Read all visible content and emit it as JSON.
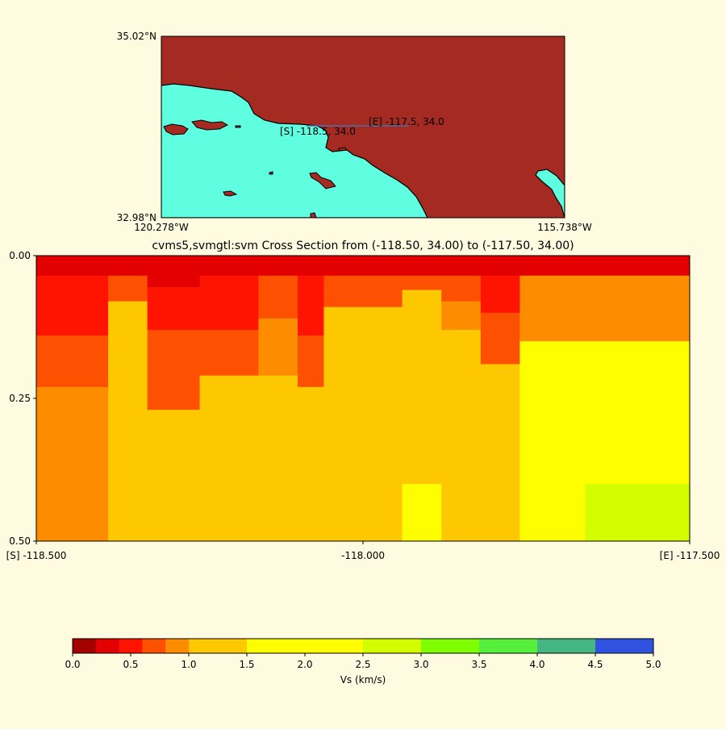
{
  "colors": {
    "background": "#fefbe0",
    "land": "#a52a22",
    "ocean": "#5ffee0",
    "section_line": "#4a6fa5"
  },
  "map": {
    "lat_top": "35.02°N",
    "lat_bottom": "32.98°N",
    "lon_left": "120.278°W",
    "lon_right": "115.738°W",
    "start_label": "[S] -118.5, 34.0",
    "end_label": "[E] -117.5, 34.0"
  },
  "chart_data": {
    "type": "heatmap",
    "title": "cvms5,svmgtl:svm Cross Section from (-118.50, 34.00) to (-117.50, 34.00)",
    "x_ticks": [
      "[S] -118.500",
      "-118.000",
      "[E] -117.500"
    ],
    "x_tick_values": [
      -118.5,
      -118.0,
      -117.5
    ],
    "y_ticks": [
      "0.00",
      "0.25",
      "0.50"
    ],
    "y_tick_values": [
      0.0,
      0.25,
      0.5
    ],
    "xlim": [
      -118.5,
      -117.5
    ],
    "ylim": [
      0.5,
      0.0
    ],
    "colorbar": {
      "label": "Vs (km/s)",
      "ticks": [
        "0.0",
        "0.5",
        "1.0",
        "1.5",
        "2.0",
        "2.5",
        "3.0",
        "3.5",
        "4.0",
        "4.5",
        "5.0"
      ],
      "boundaries": [
        0.0,
        0.2,
        0.4,
        0.6,
        0.8,
        1.0,
        1.5,
        2.0,
        2.5,
        3.0,
        3.5,
        4.0,
        4.5,
        5.0
      ],
      "colors": [
        "#a50000",
        "#e20000",
        "#fe1400",
        "#fd5000",
        "#fe8c00",
        "#fec800",
        "#fefe00",
        "#fefe00",
        "#d4fe00",
        "#7efe00",
        "#56f03c",
        "#44b682",
        "#2f53e0"
      ]
    },
    "depth_profiles": [
      {
        "x": [
          -118.5,
          -118.39
        ],
        "bands": [
          [
            0.0,
            0.035,
            0.3
          ],
          [
            0.035,
            0.14,
            0.5
          ],
          [
            0.14,
            0.23,
            0.7
          ],
          [
            0.23,
            0.5,
            0.9
          ]
        ]
      },
      {
        "x": [
          -118.39,
          -118.33
        ],
        "bands": [
          [
            0.0,
            0.035,
            0.3
          ],
          [
            0.035,
            0.08,
            0.7
          ],
          [
            0.08,
            0.5,
            1.1
          ]
        ]
      },
      {
        "x": [
          -118.33,
          -118.25
        ],
        "bands": [
          [
            0.0,
            0.055,
            0.3
          ],
          [
            0.055,
            0.13,
            0.5
          ],
          [
            0.13,
            0.27,
            0.7
          ],
          [
            0.27,
            0.5,
            1.1
          ]
        ]
      },
      {
        "x": [
          -118.25,
          -118.16
        ],
        "bands": [
          [
            0.0,
            0.035,
            0.3
          ],
          [
            0.035,
            0.13,
            0.5
          ],
          [
            0.13,
            0.21,
            0.7
          ],
          [
            0.21,
            0.5,
            1.1
          ]
        ]
      },
      {
        "x": [
          -118.16,
          -118.1
        ],
        "bands": [
          [
            0.0,
            0.035,
            0.3
          ],
          [
            0.035,
            0.11,
            0.7
          ],
          [
            0.11,
            0.21,
            0.9
          ],
          [
            0.21,
            0.5,
            1.1
          ]
        ]
      },
      {
        "x": [
          -118.1,
          -118.06
        ],
        "bands": [
          [
            0.0,
            0.035,
            0.3
          ],
          [
            0.035,
            0.14,
            0.5
          ],
          [
            0.14,
            0.23,
            0.7
          ],
          [
            0.23,
            0.5,
            1.1
          ]
        ]
      },
      {
        "x": [
          -118.06,
          -117.94
        ],
        "bands": [
          [
            0.0,
            0.035,
            0.3
          ],
          [
            0.035,
            0.09,
            0.7
          ],
          [
            0.09,
            0.5,
            1.1
          ]
        ]
      },
      {
        "x": [
          -117.94,
          -117.88
        ],
        "bands": [
          [
            0.0,
            0.035,
            0.3
          ],
          [
            0.035,
            0.06,
            0.7
          ],
          [
            0.06,
            0.4,
            1.1
          ],
          [
            0.4,
            0.5,
            1.6
          ]
        ]
      },
      {
        "x": [
          -117.88,
          -117.82
        ],
        "bands": [
          [
            0.0,
            0.035,
            0.3
          ],
          [
            0.035,
            0.08,
            0.7
          ],
          [
            0.08,
            0.13,
            0.9
          ],
          [
            0.13,
            0.5,
            1.1
          ]
        ]
      },
      {
        "x": [
          -117.82,
          -117.76
        ],
        "bands": [
          [
            0.0,
            0.035,
            0.3
          ],
          [
            0.035,
            0.1,
            0.5
          ],
          [
            0.1,
            0.19,
            0.7
          ],
          [
            0.19,
            0.5,
            1.1
          ]
        ]
      },
      {
        "x": [
          -117.76,
          -117.66
        ],
        "bands": [
          [
            0.0,
            0.035,
            0.3
          ],
          [
            0.035,
            0.15,
            0.9
          ],
          [
            0.15,
            0.5,
            1.6
          ]
        ]
      },
      {
        "x": [
          -117.66,
          -117.5
        ],
        "bands": [
          [
            0.0,
            0.035,
            0.3
          ],
          [
            0.035,
            0.15,
            0.9
          ],
          [
            0.15,
            0.4,
            1.6
          ],
          [
            0.4,
            0.5,
            2.6
          ]
        ]
      }
    ]
  }
}
